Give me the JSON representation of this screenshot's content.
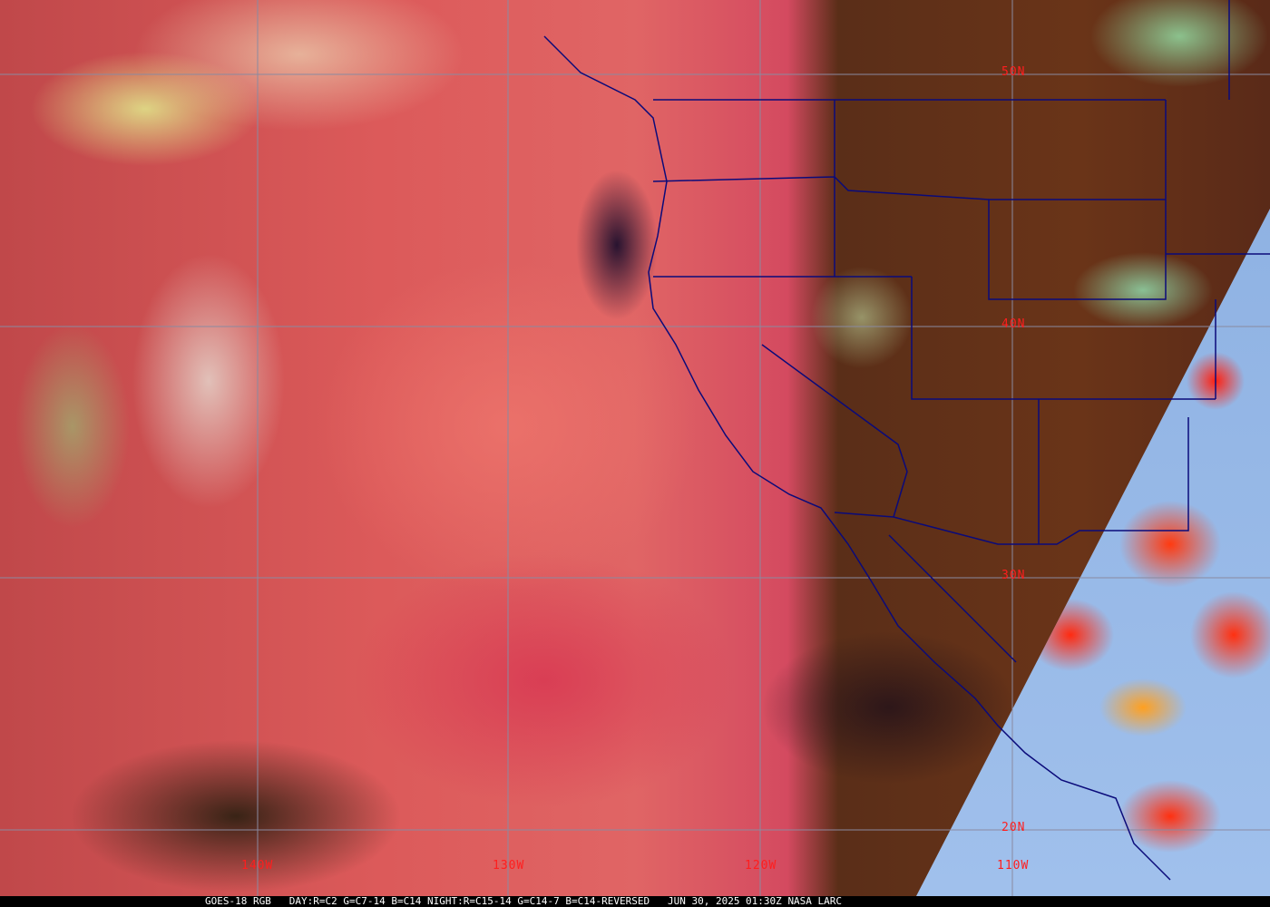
{
  "map": {
    "latitude_labels": [
      "50N",
      "40N",
      "30N",
      "20N"
    ],
    "longitude_labels": [
      "140W",
      "130W",
      "120W",
      "110W"
    ],
    "colors": {
      "grid": "#8a8aa0",
      "borders": "#0a0a7a",
      "labels": "#ff1e1e",
      "night_side": "#9ab8e8"
    }
  },
  "caption": {
    "satellite": "GOES-18 RGB",
    "recipe": "DAY:R=C2 G=C7-14 B=C14 NIGHT:R=C15-14 G=C14-7 B=C14-REVERSED",
    "timestamp": "JUN 30, 2025 01:30Z",
    "credit": "NASA LARC"
  }
}
